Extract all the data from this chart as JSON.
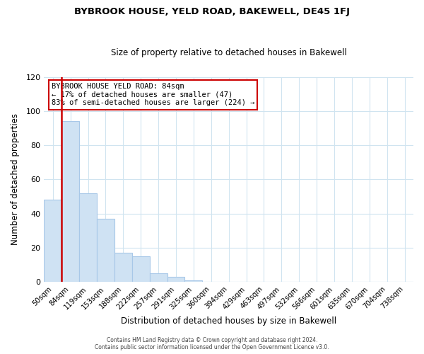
{
  "title": "BYBROOK HOUSE, YELD ROAD, BAKEWELL, DE45 1FJ",
  "subtitle": "Size of property relative to detached houses in Bakewell",
  "xlabel": "Distribution of detached houses by size in Bakewell",
  "ylabel": "Number of detached properties",
  "bar_labels": [
    "50sqm",
    "84sqm",
    "119sqm",
    "153sqm",
    "188sqm",
    "222sqm",
    "257sqm",
    "291sqm",
    "325sqm",
    "360sqm",
    "394sqm",
    "429sqm",
    "463sqm",
    "497sqm",
    "532sqm",
    "566sqm",
    "601sqm",
    "635sqm",
    "670sqm",
    "704sqm",
    "738sqm"
  ],
  "bar_values": [
    48,
    94,
    52,
    37,
    17,
    15,
    5,
    3,
    1,
    0,
    0,
    0,
    0,
    0,
    0,
    0,
    0,
    0,
    0,
    0,
    0
  ],
  "bar_color": "#cfe2f3",
  "bar_edge_color": "#a8c8e8",
  "highlight_bar_index": 1,
  "highlight_color": "#cc0000",
  "ylim": [
    0,
    120
  ],
  "yticks": [
    0,
    20,
    40,
    60,
    80,
    100,
    120
  ],
  "annotation_title": "BYBROOK HOUSE YELD ROAD: 84sqm",
  "annotation_line1": "← 17% of detached houses are smaller (47)",
  "annotation_line2": "83% of semi-detached houses are larger (224) →",
  "annotation_box_color": "#ffffff",
  "annotation_box_edgecolor": "#cc0000",
  "grid_color": "#d0e4f0",
  "footer_line1": "Contains HM Land Registry data © Crown copyright and database right 2024.",
  "footer_line2": "Contains public sector information licensed under the Open Government Licence v3.0.",
  "background_color": "#ffffff",
  "fig_width": 6.0,
  "fig_height": 5.0
}
